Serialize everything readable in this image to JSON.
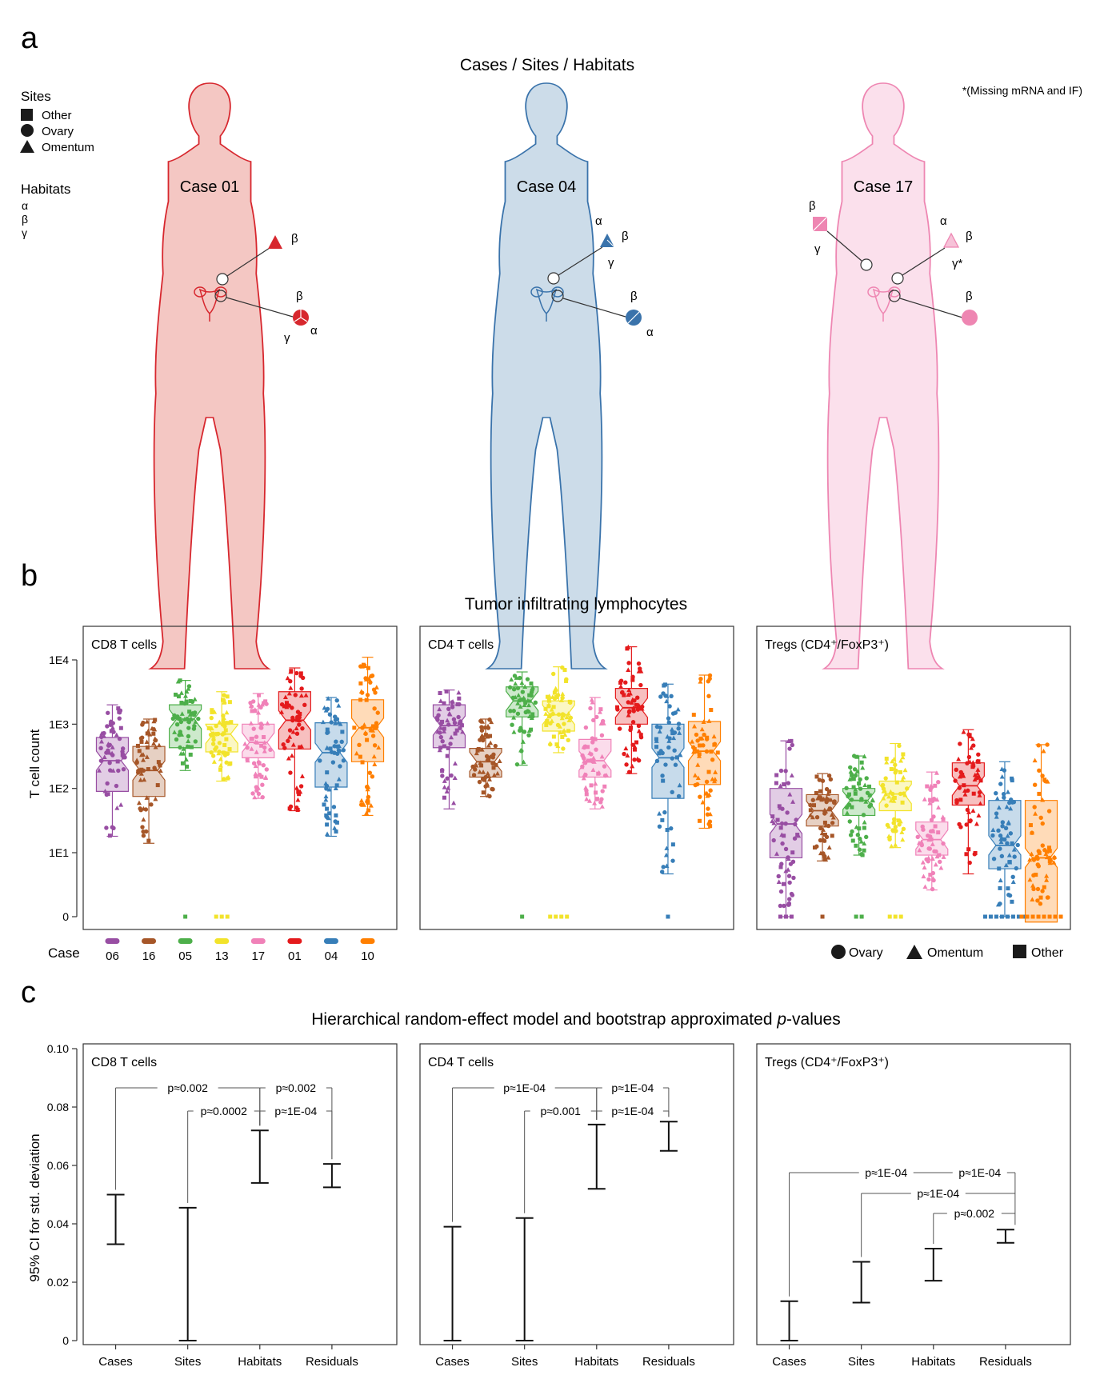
{
  "panel_a": {
    "letter": "a",
    "title": "Cases / Sites / Habitats",
    "note": "*(Missing mRNA and IF)",
    "sites_heading": "Sites",
    "sites": [
      "Other",
      "Ovary",
      "Omentum"
    ],
    "habitats_heading": "Habitats",
    "habitats": [
      "α",
      "β",
      "γ"
    ],
    "cases": [
      {
        "label": "Case 01",
        "color": "#d7272e",
        "fill": "#f4c7c3"
      },
      {
        "label": "Case 04",
        "color": "#3a73ab",
        "fill": "#ccdce9"
      },
      {
        "label": "Case 17",
        "color": "#ee86b2",
        "fill": "#fbe0ec"
      }
    ],
    "annotations": {
      "c01_omentum": [
        "β"
      ],
      "c01_ovary": [
        "β",
        "γ",
        "α"
      ],
      "c04_omentum": [
        "α",
        "β",
        "γ"
      ],
      "c04_ovary": [
        "β",
        "α"
      ],
      "c17_other": [
        "β",
        "γ"
      ],
      "c17_omentum": [
        "α",
        "β",
        "γ*"
      ],
      "c17_ovary": [
        "β"
      ]
    }
  },
  "panel_b": {
    "letter": "b",
    "title": "Tumor infiltrating lymphocytes",
    "ylabel": "T cell count",
    "ytick_labels": [
      "0",
      "1E1",
      "1E2",
      "1E3",
      "1E4"
    ],
    "case_label": "Case",
    "cases": [
      "06",
      "16",
      "05",
      "13",
      "17",
      "01",
      "04",
      "10"
    ],
    "case_colors": [
      "#984ea3",
      "#a65628",
      "#4daf4a",
      "#f2e32b",
      "#f081b8",
      "#e41a1c",
      "#377eb8",
      "#ff7f00"
    ],
    "legend": [
      "Ovary",
      "Omentum",
      "Other"
    ]
  },
  "panel_c": {
    "letter": "c",
    "title_pre": "Hierarchical random-effect model and bootstrap approximated ",
    "title_italic": "p",
    "title_post": "-values",
    "ylabel": "95% CI for std. deviation",
    "ytick_labels": [
      "0",
      "0.02",
      "0.04",
      "0.06",
      "0.08",
      "0.10"
    ],
    "categories": [
      "Cases",
      "Sites",
      "Habitats",
      "Residuals"
    ]
  },
  "chart_data": [
    {
      "type": "box",
      "title": "CD8 T cells",
      "ylabel": "T cell count",
      "yscale": "log (0, 1E1, 1E2, 1E3, 1E4)",
      "categories": [
        "06",
        "16",
        "05",
        "13",
        "17",
        "01",
        "04",
        "10"
      ],
      "boxes": [
        {
          "q1": 90,
          "median": 270,
          "q3": 620,
          "lo": 18,
          "hi": 2000,
          "zeros": 0
        },
        {
          "q1": 75,
          "median": 190,
          "q3": 450,
          "lo": 14,
          "hi": 1200,
          "zeros": 0
        },
        {
          "q1": 430,
          "median": 1200,
          "q3": 2000,
          "lo": 190,
          "hi": 4800,
          "zeros": 1
        },
        {
          "q1": 370,
          "median": 700,
          "q3": 1000,
          "lo": 130,
          "hi": 3200,
          "zeros": 3
        },
        {
          "q1": 300,
          "median": 520,
          "q3": 1000,
          "lo": 70,
          "hi": 3000,
          "zeros": 0
        },
        {
          "q1": 410,
          "median": 1150,
          "q3": 3200,
          "lo": 45,
          "hi": 7500,
          "zeros": 0
        },
        {
          "q1": 105,
          "median": 360,
          "q3": 1050,
          "lo": 18,
          "hi": 2600,
          "zeros": 0
        },
        {
          "q1": 260,
          "median": 880,
          "q3": 2400,
          "lo": 38,
          "hi": 11000,
          "zeros": 0
        }
      ]
    },
    {
      "type": "box",
      "title": "CD4 T cells",
      "ylabel": "T cell count",
      "yscale": "log (0, 1E1, 1E2, 1E3, 1E4)",
      "categories": [
        "06",
        "16",
        "05",
        "13",
        "17",
        "01",
        "04",
        "10"
      ],
      "boxes": [
        {
          "q1": 430,
          "median": 950,
          "q3": 2000,
          "lo": 48,
          "hi": 3400,
          "zeros": 0
        },
        {
          "q1": 150,
          "median": 260,
          "q3": 420,
          "lo": 75,
          "hi": 1200,
          "zeros": 0
        },
        {
          "q1": 1300,
          "median": 2300,
          "q3": 3800,
          "lo": 230,
          "hi": 6500,
          "zeros": 1
        },
        {
          "q1": 780,
          "median": 1400,
          "q3": 2300,
          "lo": 360,
          "hi": 7800,
          "zeros": 4
        },
        {
          "q1": 150,
          "median": 270,
          "q3": 580,
          "lo": 48,
          "hi": 2600,
          "zeros": 0
        },
        {
          "q1": 1000,
          "median": 1800,
          "q3": 3600,
          "lo": 170,
          "hi": 16000,
          "zeros": 0
        },
        {
          "q1": 70,
          "median": 300,
          "q3": 1000,
          "lo": 4,
          "hi": 4200,
          "zeros": 1
        },
        {
          "q1": 115,
          "median": 380,
          "q3": 1100,
          "lo": 24,
          "hi": 5800,
          "zeros": 0
        }
      ]
    },
    {
      "type": "box",
      "title": "Tregs (CD4⁺/FoxP3⁺)",
      "ylabel": "T cell count",
      "yscale": "log (0, 1E1, 1E2, 1E3, 1E4)",
      "categories": [
        "06",
        "16",
        "05",
        "13",
        "17",
        "01",
        "04",
        "10"
      ],
      "boxes": [
        {
          "q1": 8,
          "median": 28,
          "q3": 100,
          "lo": 0,
          "hi": 550,
          "zeros": 3
        },
        {
          "q1": 26,
          "median": 45,
          "q3": 80,
          "lo": 7,
          "hi": 170,
          "zeros": 1
        },
        {
          "q1": 38,
          "median": 65,
          "q3": 100,
          "lo": 9,
          "hi": 320,
          "zeros": 2
        },
        {
          "q1": 45,
          "median": 82,
          "q3": 130,
          "lo": 12,
          "hi": 500,
          "zeros": 3
        },
        {
          "q1": 9,
          "median": 16,
          "q3": 30,
          "lo": 2,
          "hi": 180,
          "zeros": 0
        },
        {
          "q1": 55,
          "median": 110,
          "q3": 250,
          "lo": 4,
          "hi": 820,
          "zeros": 0
        },
        {
          "q1": 5,
          "median": 13,
          "q3": 65,
          "lo": 0,
          "hi": 260,
          "zeros": 8
        },
        {
          "q1": 0.5,
          "median": 8,
          "q3": 65,
          "lo": 0,
          "hi": 480,
          "zeros": 8
        }
      ]
    },
    {
      "type": "errorbar",
      "title": "CD8 T cells",
      "ylabel": "95% CI for std. deviation",
      "ylim": [
        0,
        0.1
      ],
      "categories": [
        "Cases",
        "Sites",
        "Habitats",
        "Residuals"
      ],
      "intervals": [
        [
          0.033,
          0.05
        ],
        [
          0.0,
          0.0455
        ],
        [
          0.054,
          0.072
        ],
        [
          0.0525,
          0.0605
        ]
      ],
      "brackets": [
        {
          "from": "Cases",
          "to": "Habitats",
          "label": "p≈0.002"
        },
        {
          "from": "Habitats",
          "to": "Residuals",
          "label": "p≈0.002"
        },
        {
          "from": "Sites",
          "to": "Habitats",
          "label": "p≈0.0002"
        },
        {
          "from": "Habitats",
          "to": "Residuals",
          "label": "p≈1E-04"
        }
      ]
    },
    {
      "type": "errorbar",
      "title": "CD4 T cells",
      "ylabel": "95% CI for std. deviation",
      "ylim": [
        0,
        0.1
      ],
      "categories": [
        "Cases",
        "Sites",
        "Habitats",
        "Residuals"
      ],
      "intervals": [
        [
          0.0,
          0.039
        ],
        [
          0.0,
          0.042
        ],
        [
          0.052,
          0.074
        ],
        [
          0.065,
          0.075
        ]
      ],
      "brackets": [
        {
          "from": "Cases",
          "to": "Habitats",
          "label": "p≈1E-04"
        },
        {
          "from": "Habitats",
          "to": "Residuals",
          "label": "p≈1E-04"
        },
        {
          "from": "Sites",
          "to": "Habitats",
          "label": "p≈0.001"
        },
        {
          "from": "Habitats",
          "to": "Residuals",
          "label": "p≈1E-04"
        }
      ]
    },
    {
      "type": "errorbar",
      "title": "Tregs (CD4⁺/FoxP3⁺)",
      "ylabel": "95% CI for std. deviation",
      "ylim": [
        0,
        0.1
      ],
      "categories": [
        "Cases",
        "Sites",
        "Habitats",
        "Residuals"
      ],
      "intervals": [
        [
          0.0,
          0.0135
        ],
        [
          0.013,
          0.027
        ],
        [
          0.0205,
          0.0315
        ],
        [
          0.0335,
          0.038
        ]
      ],
      "brackets": [
        {
          "from": "Cases",
          "to": "Residuals",
          "label": "p≈1E-04"
        },
        {
          "from": "Residuals",
          "to": "Residuals",
          "label": "p≈1E-04"
        },
        {
          "from": "Sites",
          "to": "Residuals",
          "label": "p≈1E-04"
        },
        {
          "from": "Habitats",
          "to": "Residuals",
          "label": "p≈0.002"
        }
      ]
    }
  ]
}
